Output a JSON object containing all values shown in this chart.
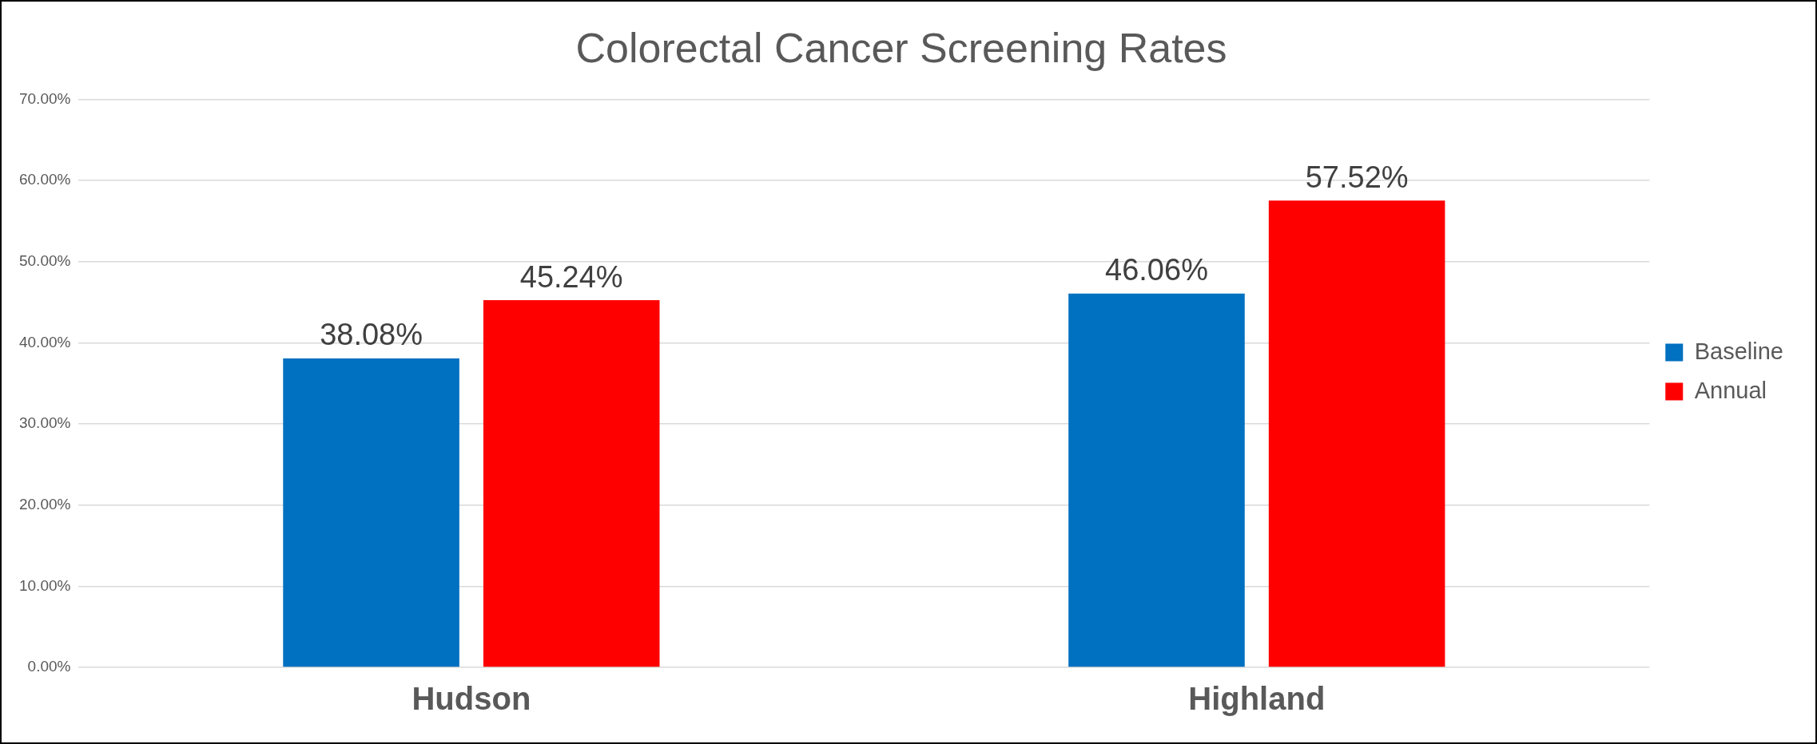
{
  "chart_data": {
    "type": "bar",
    "title": "Colorectal Cancer Screening Rates",
    "categories": [
      "Hudson",
      "Highland"
    ],
    "series": [
      {
        "name": "Baseline",
        "color": "#0070c0",
        "values": [
          38.08,
          46.06
        ],
        "value_labels": [
          "38.08%",
          "46.06%"
        ]
      },
      {
        "name": "Annual",
        "color": "#ff0000",
        "values": [
          45.24,
          57.52
        ],
        "value_labels": [
          "45.24%",
          "57.52%"
        ]
      }
    ],
    "ylim": [
      0,
      70
    ],
    "yticks": [
      {
        "value": 0,
        "label": "0.00%"
      },
      {
        "value": 10,
        "label": "10.00%"
      },
      {
        "value": 20,
        "label": "20.00%"
      },
      {
        "value": 30,
        "label": "30.00%"
      },
      {
        "value": 40,
        "label": "40.00%"
      },
      {
        "value": 50,
        "label": "50.00%"
      },
      {
        "value": 60,
        "label": "60.00%"
      },
      {
        "value": 70,
        "label": "70.00%"
      }
    ],
    "grid": "y",
    "legend": "right"
  }
}
